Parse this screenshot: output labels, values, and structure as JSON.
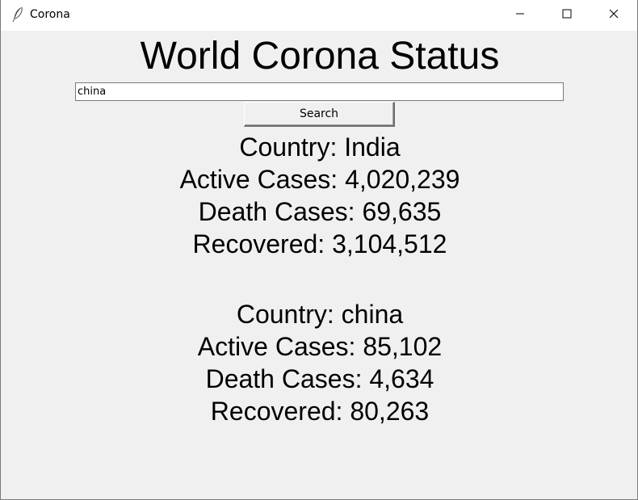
{
  "window": {
    "title": "Corona",
    "app_icon": "feather-icon",
    "controls": [
      "minimize-icon",
      "maximize-icon",
      "close-icon"
    ]
  },
  "heading": "World Corona Status",
  "search": {
    "value": "china",
    "button_label": "Search"
  },
  "results": [
    {
      "country": "Country: India",
      "active": "Active Cases: 4,020,239",
      "deaths": "Death Cases: 69,635",
      "recovered": "Recovered: 3,104,512"
    },
    {
      "country": "Country: china",
      "active": "Active Cases: 85,102",
      "deaths": "Death Cases: 4,634",
      "recovered": "Recovered: 80,263"
    }
  ]
}
